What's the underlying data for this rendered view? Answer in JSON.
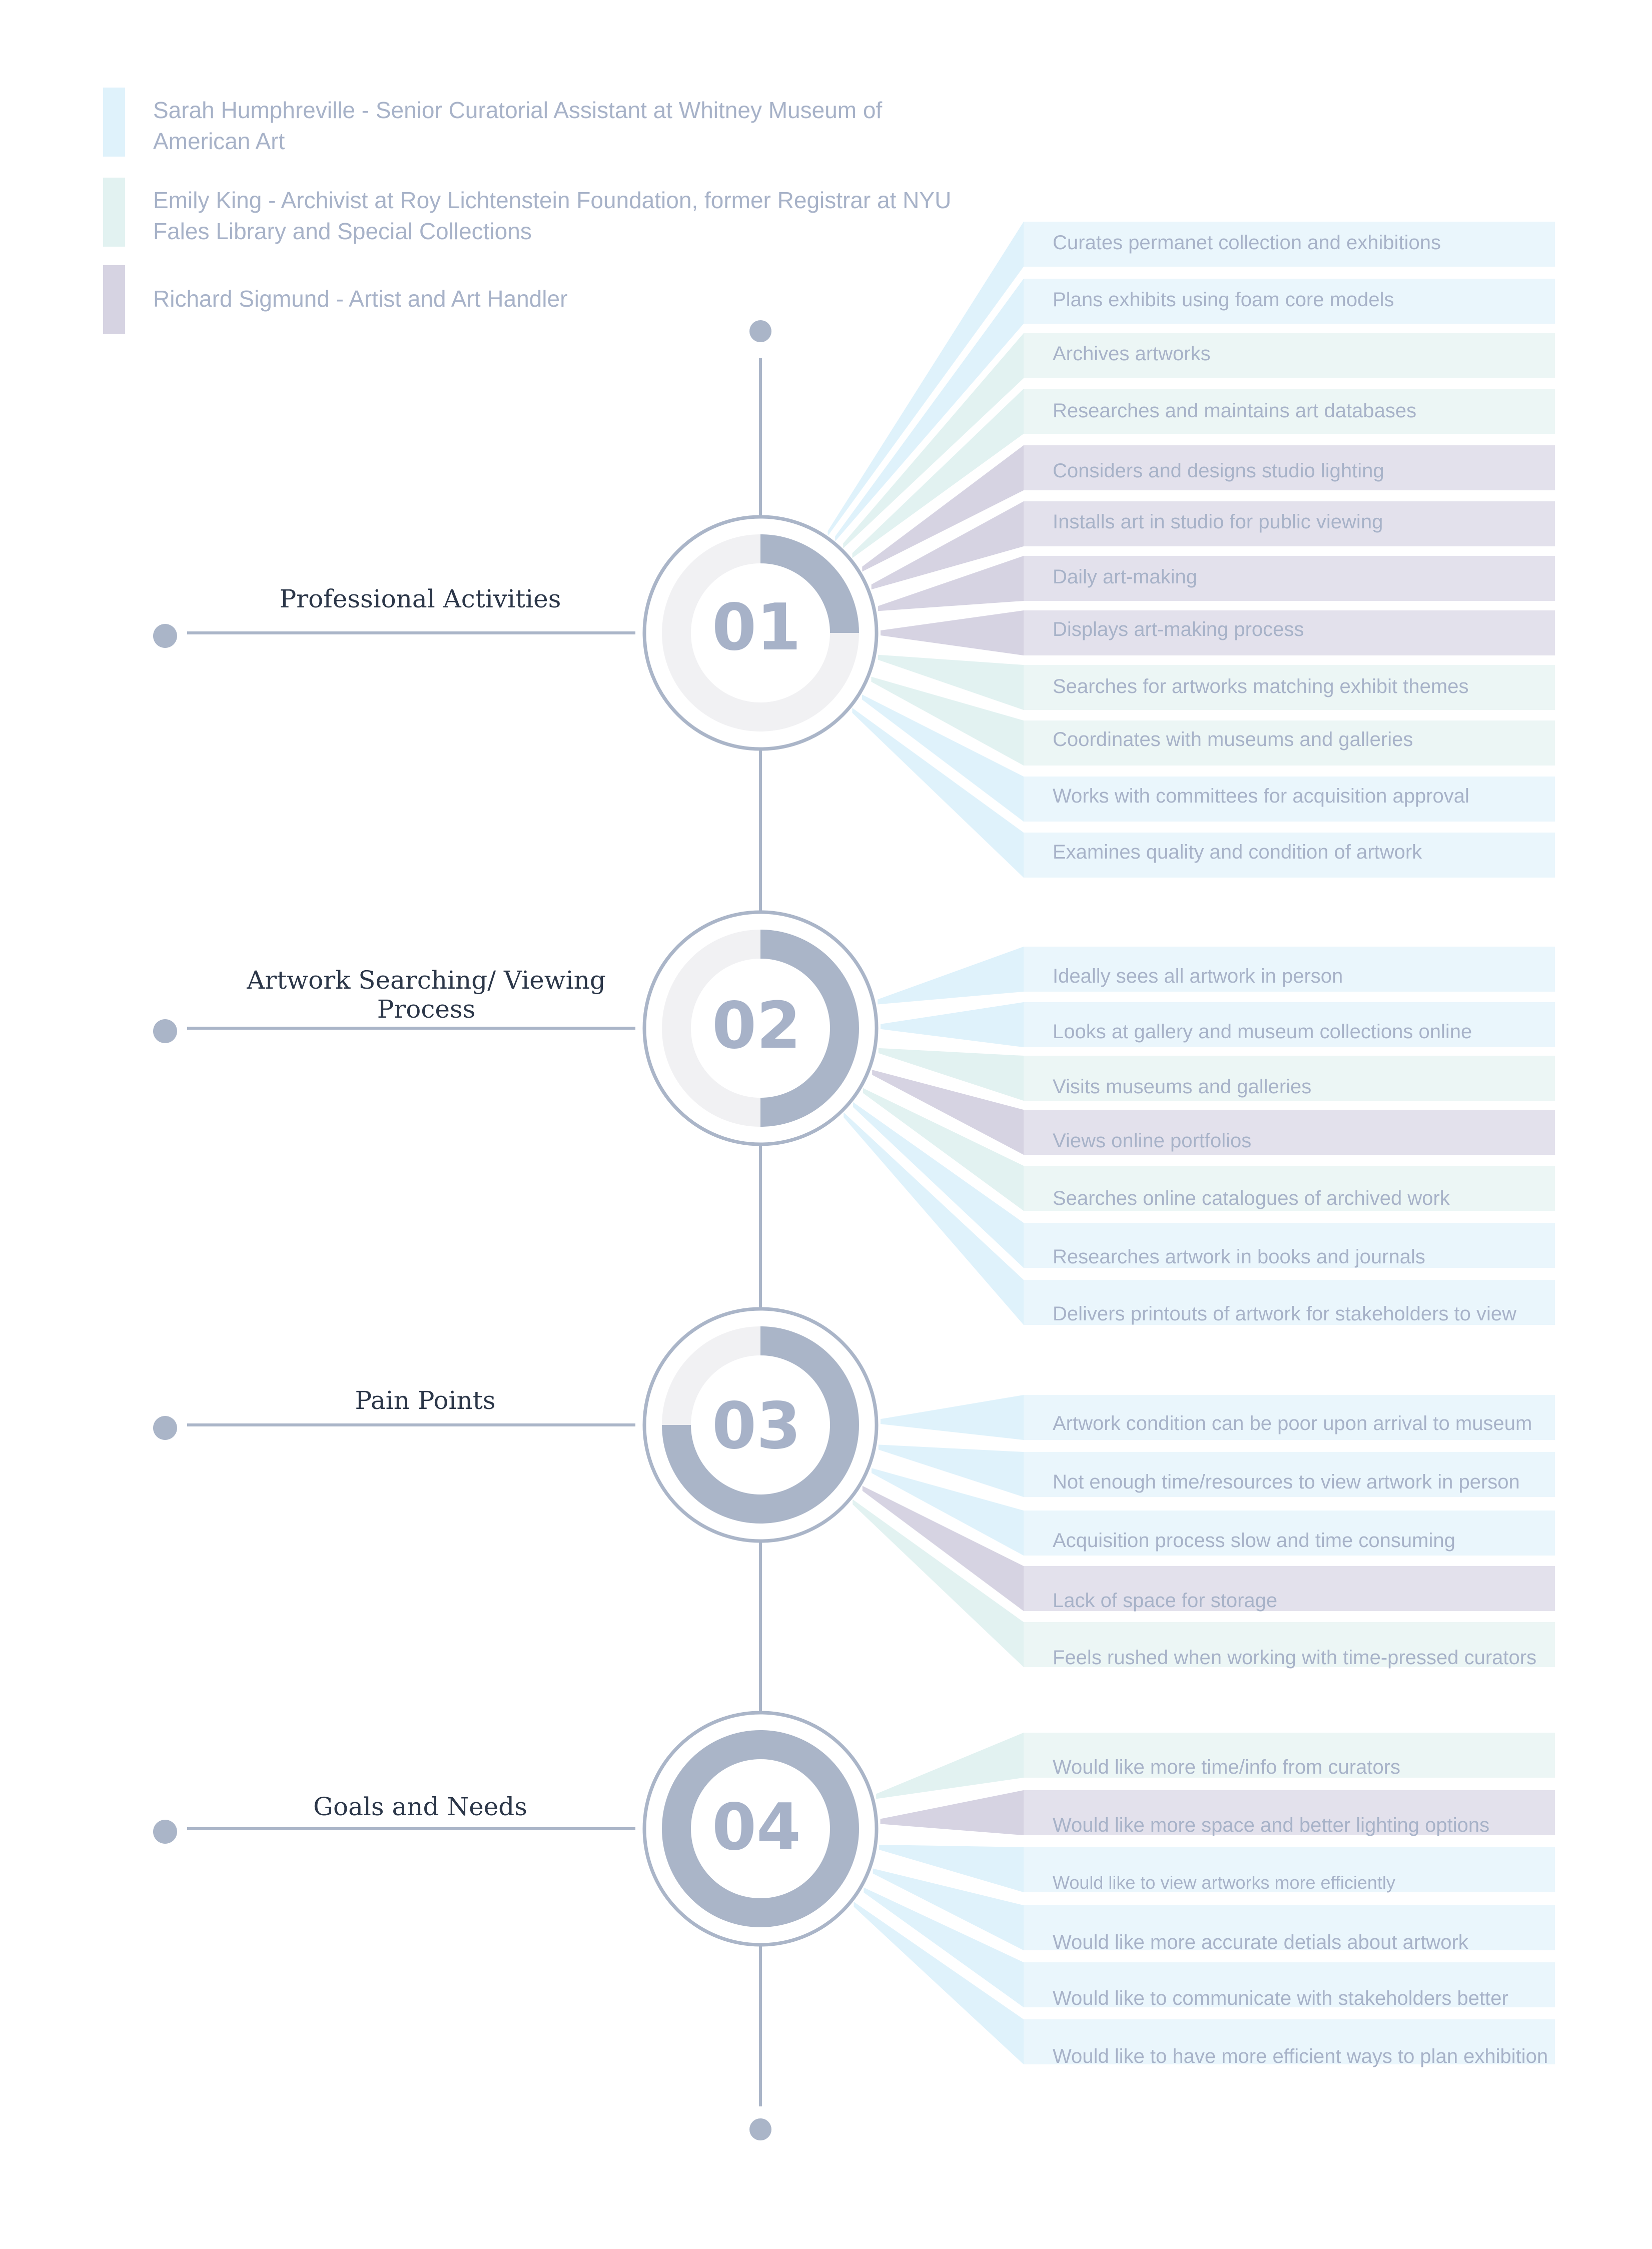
{
  "colors": {
    "sarah": "#dff2fb",
    "emily": "#e2f2f1",
    "richard": "#d6d3e2",
    "sarah_bg": "#eaf6fc",
    "emily_bg": "#ecf6f5",
    "richard_bg": "#e3e1ec",
    "accent": "#aab5c8",
    "track": "#f1f1f3",
    "label_text": "#a7b2c8",
    "heading_text": "#2b3648"
  },
  "legend": [
    {
      "key": "sarah",
      "text": "Sarah Humphreville - Senior Curatorial Assistant at Whitney Museum of American Art"
    },
    {
      "key": "emily",
      "text": "Emily King - Archivist at Roy Lichtenstein Foundation, former Registrar at NYU Fales Library and Special Collections"
    },
    {
      "key": "richard",
      "text": "Richard Sigmund - Artist and Art Handler"
    }
  ],
  "sections": [
    {
      "number": "01",
      "title": "Professional Activities",
      "progress": 0.25,
      "items": [
        {
          "text": "Curates permanet collection and exhibitions",
          "key": "sarah"
        },
        {
          "text": "Plans exhibits using foam core models",
          "key": "sarah"
        },
        {
          "text": "Archives artworks",
          "key": "emily"
        },
        {
          "text": "Researches and maintains art databases",
          "key": "emily"
        },
        {
          "text": "Considers and designs studio lighting",
          "key": "richard"
        },
        {
          "text": "Installs art in studio for public viewing",
          "key": "richard"
        },
        {
          "text": "Daily art-making",
          "key": "richard"
        },
        {
          "text": "Displays art-making process",
          "key": "richard"
        },
        {
          "text": "Searches for artworks matching exhibit themes",
          "key": "emily"
        },
        {
          "text": "Coordinates with museums and galleries",
          "key": "emily"
        },
        {
          "text": "Works with committees for acquisition approval",
          "key": "sarah"
        },
        {
          "text": "Examines quality and condition of artwork",
          "key": "sarah"
        }
      ]
    },
    {
      "number": "02",
      "title": "Artwork Searching/ Viewing Process",
      "progress": 0.5,
      "items": [
        {
          "text": "Ideally sees all artwork in person",
          "key": "sarah"
        },
        {
          "text": "Looks at gallery and museum collections online",
          "key": "sarah"
        },
        {
          "text": "Visits museums and galleries",
          "key": "emily"
        },
        {
          "text": "Views online portfolios",
          "key": "richard"
        },
        {
          "text": "Searches online catalogues of archived work",
          "key": "emily"
        },
        {
          "text": "Researches artwork in books and journals",
          "key": "sarah"
        },
        {
          "text": "Delivers printouts of artwork for stakeholders to view",
          "key": "sarah"
        }
      ]
    },
    {
      "number": "03",
      "title": "Pain Points",
      "progress": 0.75,
      "items": [
        {
          "text": "Artwork condition can be poor upon arrival to museum",
          "key": "sarah"
        },
        {
          "text": "Not enough time/resources to view artwork in person",
          "key": "sarah"
        },
        {
          "text": "Acquisition process slow and time consuming",
          "key": "sarah"
        },
        {
          "text": "Lack of space for storage",
          "key": "richard"
        },
        {
          "text": "Feels rushed when working with time-pressed curators",
          "key": "emily"
        }
      ]
    },
    {
      "number": "04",
      "title": "Goals and Needs",
      "progress": 1.0,
      "items": [
        {
          "text": "Would like more time/info from curators",
          "key": "emily"
        },
        {
          "text": "Would like more space and better lighting options",
          "key": "richard"
        },
        {
          "text": "Would like to view artworks more efficiently",
          "key": "sarah"
        },
        {
          "text": "Would like more accurate detials about artwork",
          "key": "sarah"
        },
        {
          "text": "Would like to communicate with stakeholders better",
          "key": "sarah"
        },
        {
          "text": "Would like to have more efficient ways to plan exhibition",
          "key": "sarah"
        }
      ]
    }
  ]
}
